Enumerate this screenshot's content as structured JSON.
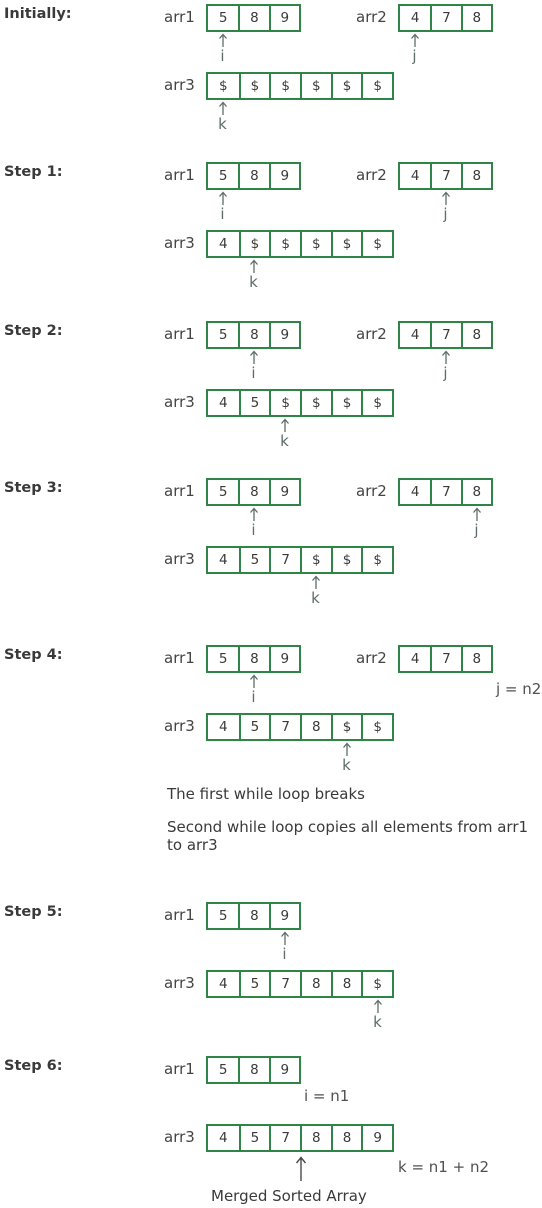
{
  "steps": [
    {
      "label": "Initially:",
      "arr1": {
        "name": "arr1",
        "cells": [
          "5",
          "8",
          "9"
        ],
        "pointer": "i",
        "pointer_index": 0
      },
      "arr2": {
        "name": "arr2",
        "cells": [
          "4",
          "7",
          "8"
        ],
        "pointer": "j",
        "pointer_index": 0
      },
      "arr3": {
        "name": "arr3",
        "cells": [
          "$",
          "$",
          "$",
          "$",
          "$",
          "$"
        ],
        "pointer": "k",
        "pointer_index": 0
      }
    },
    {
      "label": "Step 1:",
      "arr1": {
        "name": "arr1",
        "cells": [
          "5",
          "8",
          "9"
        ],
        "pointer": "i",
        "pointer_index": 0
      },
      "arr2": {
        "name": "arr2",
        "cells": [
          "4",
          "7",
          "8"
        ],
        "pointer": "j",
        "pointer_index": 1
      },
      "arr3": {
        "name": "arr3",
        "cells": [
          "4",
          "$",
          "$",
          "$",
          "$",
          "$"
        ],
        "pointer": "k",
        "pointer_index": 1
      }
    },
    {
      "label": "Step 2:",
      "arr1": {
        "name": "arr1",
        "cells": [
          "5",
          "8",
          "9"
        ],
        "pointer": "i",
        "pointer_index": 1
      },
      "arr2": {
        "name": "arr2",
        "cells": [
          "4",
          "7",
          "8"
        ],
        "pointer": "j",
        "pointer_index": 1
      },
      "arr3": {
        "name": "arr3",
        "cells": [
          "4",
          "5",
          "$",
          "$",
          "$",
          "$"
        ],
        "pointer": "k",
        "pointer_index": 2
      }
    },
    {
      "label": "Step 3:",
      "arr1": {
        "name": "arr1",
        "cells": [
          "5",
          "8",
          "9"
        ],
        "pointer": "i",
        "pointer_index": 1
      },
      "arr2": {
        "name": "arr2",
        "cells": [
          "4",
          "7",
          "8"
        ],
        "pointer": "j",
        "pointer_index": 2
      },
      "arr3": {
        "name": "arr3",
        "cells": [
          "4",
          "5",
          "7",
          "$",
          "$",
          "$"
        ],
        "pointer": "k",
        "pointer_index": 3
      }
    },
    {
      "label": "Step 4:",
      "arr1": {
        "name": "arr1",
        "cells": [
          "5",
          "8",
          "9"
        ],
        "pointer": "i",
        "pointer_index": 1
      },
      "arr2": {
        "name": "arr2",
        "cells": [
          "4",
          "7",
          "8"
        ],
        "note": "j = n2"
      },
      "arr3": {
        "name": "arr3",
        "cells": [
          "4",
          "5",
          "7",
          "8",
          "$",
          "$"
        ],
        "pointer": "k",
        "pointer_index": 4
      },
      "notes": [
        "The first while loop breaks",
        "Second while loop copies all elements from arr1 to arr3"
      ]
    },
    {
      "label": "Step 5:",
      "arr1": {
        "name": "arr1",
        "cells": [
          "5",
          "8",
          "9"
        ],
        "pointer": "i",
        "pointer_index": 2
      },
      "arr3": {
        "name": "arr3",
        "cells": [
          "4",
          "5",
          "7",
          "8",
          "8",
          "$"
        ],
        "pointer": "k",
        "pointer_index": 5
      }
    },
    {
      "label": "Step 6:",
      "arr1": {
        "name": "arr1",
        "cells": [
          "5",
          "8",
          "9"
        ],
        "note": "i = n1"
      },
      "arr3": {
        "name": "arr3",
        "cells": [
          "4",
          "5",
          "7",
          "8",
          "8",
          "9"
        ],
        "note": "k = n1 + n2",
        "caption": "Merged Sorted Array"
      }
    }
  ],
  "colors": {
    "border": "#2f8548",
    "text": "#3a3a3a",
    "pointer": "#5d6e66"
  }
}
